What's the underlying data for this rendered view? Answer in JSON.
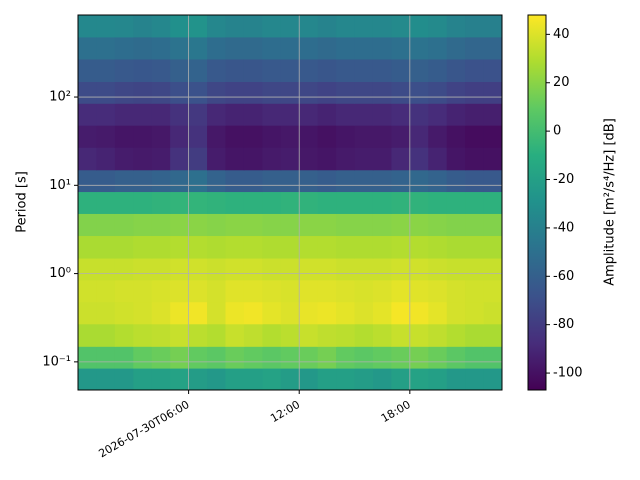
{
  "chart_data": {
    "type": "heatmap",
    "xlabel": null,
    "ylabel": "Period [s]",
    "colorbar_label": "Amplitude [m²/s⁴/Hz] [dB]",
    "x_bins": [
      0,
      1,
      2,
      3,
      4,
      5,
      6,
      7,
      8,
      9,
      10,
      11,
      12,
      13,
      14,
      15,
      16,
      17,
      18,
      19,
      20,
      21,
      22,
      23
    ],
    "y_bins": [
      0.048,
      0.085,
      0.15,
      0.27,
      0.48,
      0.85,
      1.5,
      2.7,
      4.8,
      8.5,
      15,
      27,
      48,
      85,
      150,
      270,
      480,
      850
    ],
    "xlim": [
      0,
      23
    ],
    "ylim": [
      0.048,
      850
    ],
    "ylog": true,
    "grid": true,
    "xticks": [
      {
        "value": 6,
        "label": "2026-07-30T06:00"
      },
      {
        "value": 12,
        "label": "12:00"
      },
      {
        "value": 18,
        "label": "18:00"
      }
    ],
    "yticks": [
      {
        "value": 0.1,
        "label": "10⁻¹"
      },
      {
        "value": 1,
        "label": "10⁰"
      },
      {
        "value": 10,
        "label": "10¹"
      },
      {
        "value": 100,
        "label": "10²"
      }
    ],
    "clim": [
      -107,
      48
    ],
    "cticks": [
      -100,
      -80,
      -60,
      -40,
      -20,
      0,
      20,
      40
    ],
    "colormap": [
      "#440154",
      "#472d7b",
      "#3b528b",
      "#2c728e",
      "#21918c",
      "#28ae80",
      "#5ec962",
      "#addc30",
      "#fde725"
    ],
    "z": [
      [
        -25,
        -25,
        -25,
        -20,
        -20,
        -18,
        -22,
        -25,
        -20,
        -20,
        -18,
        -22,
        -25,
        -20,
        -20,
        -22,
        -25,
        -20,
        -18,
        -20,
        -25,
        -25,
        -25
      ],
      [
        5,
        5,
        5,
        10,
        12,
        15,
        10,
        8,
        12,
        10,
        8,
        10,
        12,
        15,
        10,
        8,
        10,
        12,
        15,
        12,
        8,
        5,
        5
      ],
      [
        28,
        28,
        30,
        32,
        33,
        35,
        32,
        30,
        35,
        33,
        30,
        32,
        35,
        33,
        32,
        30,
        32,
        35,
        35,
        33,
        30,
        28,
        28
      ],
      [
        36,
        36,
        37,
        38,
        40,
        44,
        45,
        38,
        44,
        45,
        42,
        40,
        43,
        44,
        42,
        40,
        42,
        46,
        45,
        42,
        38,
        37,
        36
      ],
      [
        37,
        37,
        38,
        38,
        39,
        40,
        40,
        38,
        41,
        41,
        40,
        39,
        41,
        41,
        40,
        39,
        40,
        42,
        41,
        40,
        38,
        37,
        37
      ],
      [
        35,
        35,
        35,
        36,
        36,
        37,
        37,
        36,
        37,
        37,
        36,
        36,
        37,
        37,
        36,
        36,
        36,
        37,
        37,
        36,
        35,
        35,
        35
      ],
      [
        28,
        28,
        28,
        29,
        29,
        30,
        30,
        29,
        30,
        30,
        29,
        29,
        30,
        30,
        29,
        29,
        29,
        30,
        30,
        29,
        28,
        28,
        28
      ],
      [
        18,
        18,
        18,
        19,
        19,
        20,
        20,
        19,
        20,
        20,
        19,
        19,
        20,
        20,
        19,
        19,
        19,
        20,
        20,
        19,
        18,
        18,
        18
      ],
      [
        -8,
        -8,
        -8,
        -8,
        -7,
        -6,
        -6,
        -7,
        -8,
        -8,
        -8,
        -7,
        -7,
        -8,
        -8,
        -8,
        -8,
        -7,
        -7,
        -8,
        -8,
        -8,
        -8
      ],
      [
        -62,
        -62,
        -60,
        -60,
        -58,
        -55,
        -50,
        -58,
        -62,
        -62,
        -60,
        -60,
        -60,
        -62,
        -60,
        -60,
        -60,
        -58,
        -55,
        -58,
        -62,
        -64,
        -64
      ],
      [
        -90,
        -92,
        -95,
        -96,
        -95,
        -85,
        -80,
        -95,
        -98,
        -98,
        -96,
        -95,
        -97,
        -98,
        -96,
        -95,
        -95,
        -90,
        -85,
        -92,
        -98,
        -100,
        -100
      ],
      [
        -95,
        -96,
        -98,
        -98,
        -97,
        -90,
        -85,
        -97,
        -100,
        -100,
        -98,
        -97,
        -98,
        -100,
        -98,
        -97,
        -97,
        -95,
        -90,
        -96,
        -100,
        -102,
        -102
      ],
      [
        -88,
        -88,
        -90,
        -90,
        -90,
        -85,
        -82,
        -90,
        -92,
        -92,
        -90,
        -90,
        -90,
        -92,
        -90,
        -90,
        -90,
        -88,
        -85,
        -88,
        -92,
        -94,
        -94
      ],
      [
        -72,
        -72,
        -74,
        -75,
        -74,
        -70,
        -68,
        -74,
        -76,
        -76,
        -74,
        -74,
        -74,
        -76,
        -74,
        -74,
        -74,
        -72,
        -70,
        -72,
        -76,
        -78,
        -78
      ],
      [
        -62,
        -62,
        -64,
        -65,
        -64,
        -60,
        -58,
        -64,
        -66,
        -66,
        -64,
        -64,
        -64,
        -66,
        -64,
        -64,
        -64,
        -62,
        -60,
        -62,
        -66,
        -68,
        -68
      ],
      [
        -50,
        -50,
        -52,
        -53,
        -52,
        -48,
        -46,
        -52,
        -54,
        -54,
        -52,
        -52,
        -52,
        -54,
        -52,
        -52,
        -52,
        -50,
        -48,
        -50,
        -54,
        -56,
        -56
      ],
      [
        -35,
        -35,
        -36,
        -38,
        -36,
        -30,
        -28,
        -36,
        -38,
        -38,
        -36,
        -36,
        -36,
        -38,
        -36,
        -36,
        -36,
        -34,
        -32,
        -34,
        -38,
        -40,
        -40
      ]
    ]
  }
}
